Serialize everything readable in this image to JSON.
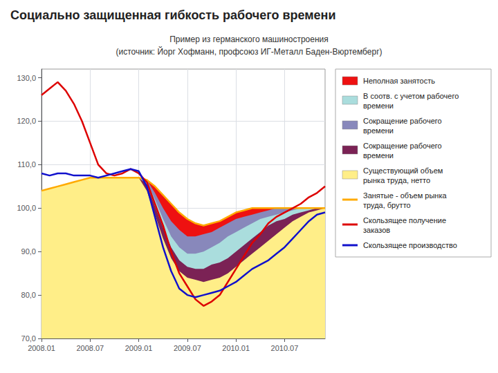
{
  "chart_data": {
    "type": "line",
    "title": "Социально защищенная гибкость рабочего времени",
    "subtitle": [
      "Пример из германского машиностроения",
      "(источник: Йорг Хофманн, профсоюз ИГ-Металл Баден-Вюртемберг)"
    ],
    "categories": [
      "2008.01",
      null,
      null,
      null,
      null,
      null,
      "2008.07",
      null,
      null,
      null,
      null,
      null,
      "2009.01",
      null,
      null,
      null,
      null,
      null,
      "2009.07",
      null,
      null,
      null,
      null,
      null,
      "2010.01",
      null,
      null,
      null,
      null,
      null,
      "2010.07",
      null,
      null,
      null,
      null,
      null
    ],
    "ylim": [
      70,
      132
    ],
    "yticks": [
      {
        "value": 70,
        "label": "70,0"
      },
      {
        "value": 80,
        "label": "80,0"
      },
      {
        "value": 90,
        "label": "90,0"
      },
      {
        "value": 100,
        "label": "100,0"
      },
      {
        "value": 110,
        "label": "110,0"
      },
      {
        "value": 120,
        "label": "120,0"
      },
      {
        "value": 130,
        "label": "130,0"
      }
    ],
    "grid": true,
    "legend": "right",
    "series": [
      {
        "name": "Неполная занятость",
        "type": "area",
        "color": "#ee1111",
        "values": [
          104.0,
          104.5,
          105.0,
          105.5,
          106.0,
          106.5,
          107.0,
          107.0,
          107.0,
          107.0,
          107.0,
          107.0,
          107.0,
          106.5,
          105.0,
          103.0,
          101.0,
          99.0,
          97.5,
          96.5,
          96.0,
          96.5,
          97.0,
          98.0,
          99.0,
          99.5,
          100.0,
          100.0,
          100.0,
          100.0,
          100.0,
          100.0,
          100.0,
          100.0,
          100.0,
          100.0
        ]
      },
      {
        "name": "В соотв. с учетом рабочего\nвремени",
        "type": "area",
        "color": "#aadddd",
        "values": [
          104.0,
          104.5,
          105.0,
          105.5,
          106.0,
          106.5,
          107.0,
          107.0,
          107.0,
          107.0,
          107.0,
          107.0,
          107.0,
          106.0,
          102.0,
          97.5,
          93.5,
          91.0,
          89.5,
          89.5,
          90.0,
          91.0,
          92.0,
          93.5,
          94.5,
          95.5,
          96.5,
          97.5,
          98.0,
          98.5,
          99.0,
          99.5,
          100.0,
          100.0,
          100.0,
          100.0
        ]
      },
      {
        "name": "Сокращение рабочего\nвремени",
        "type": "area",
        "color": "#8888bb",
        "values": [
          104.0,
          104.5,
          105.0,
          105.5,
          106.0,
          106.5,
          107.0,
          107.0,
          107.0,
          107.0,
          107.0,
          107.0,
          107.0,
          106.5,
          103.5,
          100.0,
          97.0,
          95.0,
          93.5,
          93.5,
          94.0,
          94.5,
          95.5,
          96.5,
          97.5,
          98.0,
          98.5,
          99.0,
          99.5,
          100.0,
          100.0,
          100.0,
          100.0,
          100.0,
          100.0,
          100.0
        ]
      },
      {
        "name": "Сокращение рабочего\nвремени",
        "type": "area",
        "color": "#7b2255",
        "values": [
          104.0,
          104.5,
          105.0,
          105.5,
          106.0,
          106.5,
          107.0,
          107.0,
          107.0,
          107.0,
          107.0,
          107.0,
          107.0,
          105.5,
          100.5,
          95.5,
          91.0,
          88.0,
          86.5,
          86.0,
          86.0,
          87.0,
          87.5,
          88.5,
          90.0,
          91.5,
          93.0,
          94.5,
          96.0,
          97.0,
          97.5,
          98.5,
          99.0,
          99.5,
          100.0,
          100.0
        ]
      },
      {
        "name": "Существующий объем\nрынка труда, нетто",
        "type": "area",
        "color": "#ffee88",
        "values": [
          104.0,
          104.5,
          105.0,
          105.5,
          106.0,
          106.5,
          107.0,
          107.0,
          107.0,
          107.0,
          107.0,
          107.0,
          107.0,
          104.0,
          98.5,
          93.0,
          88.5,
          85.5,
          84.0,
          83.5,
          83.0,
          83.5,
          84.0,
          85.0,
          86.5,
          88.0,
          89.5,
          91.0,
          92.5,
          94.0,
          95.5,
          97.0,
          98.0,
          99.0,
          99.5,
          100.0
        ]
      },
      {
        "name": "Занятые - объем рынка\nтруда, брутто",
        "type": "line",
        "color": "#ffaa00",
        "values": [
          104.0,
          104.5,
          105.0,
          105.5,
          106.0,
          106.5,
          107.0,
          107.0,
          107.0,
          107.0,
          107.0,
          107.0,
          107.0,
          106.5,
          105.0,
          103.0,
          101.0,
          99.0,
          97.5,
          96.5,
          96.0,
          96.5,
          97.0,
          98.0,
          99.0,
          99.5,
          100.0,
          100.0,
          100.0,
          100.0,
          100.0,
          100.0,
          100.0,
          100.0,
          100.0,
          100.0
        ]
      },
      {
        "name": "Скользящее получение\nзаказов",
        "type": "line",
        "color": "#dd0000",
        "values": [
          126.0,
          127.5,
          129.0,
          127.0,
          124.0,
          120.0,
          115.0,
          110.0,
          108.0,
          107.5,
          108.0,
          109.0,
          108.0,
          106.0,
          101.0,
          96.0,
          90.0,
          85.0,
          82.0,
          79.0,
          77.5,
          78.5,
          80.0,
          83.0,
          86.0,
          89.0,
          92.0,
          94.0,
          96.5,
          98.0,
          99.0,
          100.0,
          101.0,
          102.5,
          103.5,
          105.0
        ]
      },
      {
        "name": "Скользящее производство",
        "type": "line",
        "color": "#1111cc",
        "values": [
          108.0,
          107.5,
          108.0,
          108.0,
          107.5,
          107.5,
          107.5,
          107.0,
          107.5,
          108.0,
          108.5,
          109.0,
          108.5,
          105.0,
          98.0,
          91.0,
          85.5,
          81.5,
          80.0,
          79.5,
          80.0,
          80.5,
          81.0,
          82.0,
          83.0,
          84.5,
          86.0,
          87.0,
          88.0,
          89.5,
          91.0,
          93.0,
          95.0,
          97.0,
          98.5,
          99.0
        ]
      }
    ]
  }
}
